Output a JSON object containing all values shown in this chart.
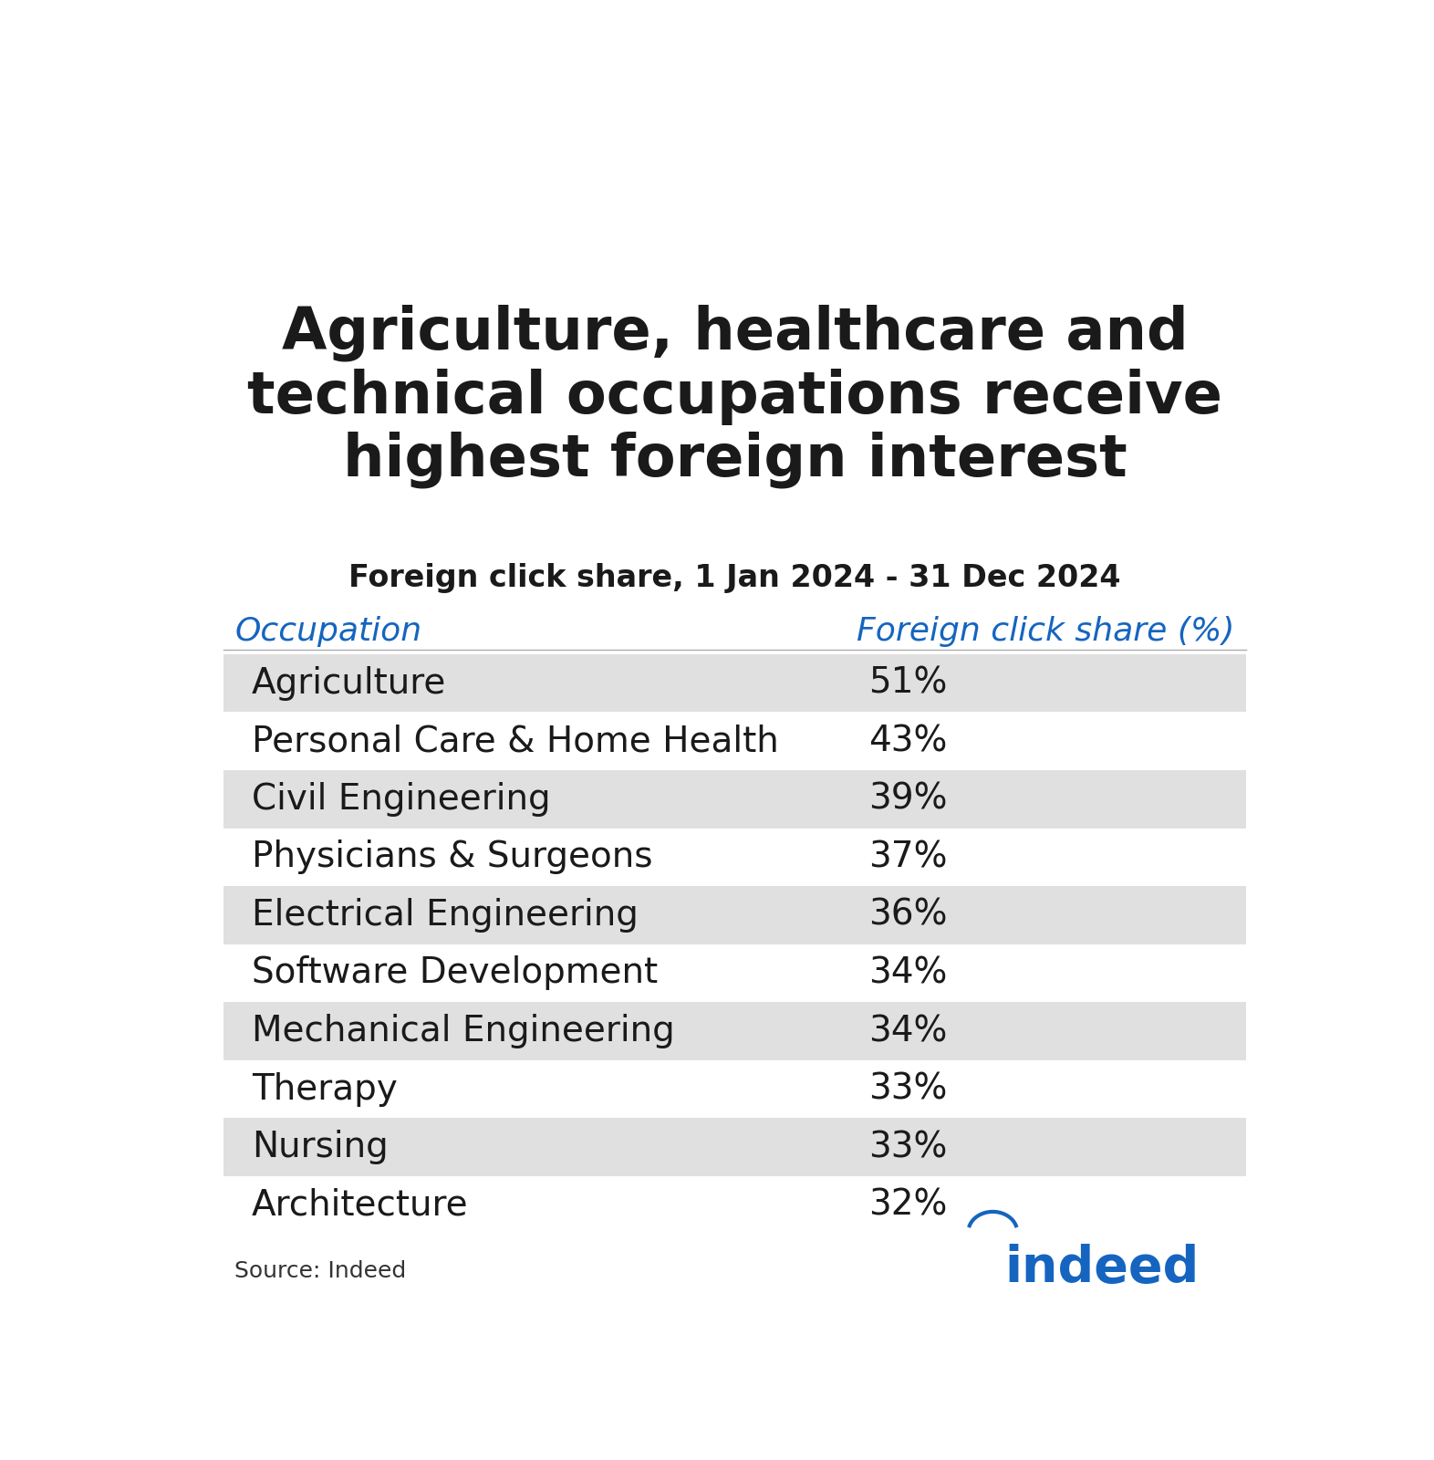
{
  "title": "Agriculture, healthcare and\ntechnical occupations receive\nhighest foreign interest",
  "subtitle": "Foreign click share, 1 Jan 2024 - 31 Dec 2024",
  "col1_header": "Occupation",
  "col2_header": "Foreign click share (%)",
  "header_color": "#1565C0",
  "rows": [
    {
      "occupation": "Agriculture",
      "value": "51%",
      "shaded": true
    },
    {
      "occupation": "Personal Care & Home Health",
      "value": "43%",
      "shaded": false
    },
    {
      "occupation": "Civil Engineering",
      "value": "39%",
      "shaded": true
    },
    {
      "occupation": "Physicians & Surgeons",
      "value": "37%",
      "shaded": false
    },
    {
      "occupation": "Electrical Engineering",
      "value": "36%",
      "shaded": true
    },
    {
      "occupation": "Software Development",
      "value": "34%",
      "shaded": false
    },
    {
      "occupation": "Mechanical Engineering",
      "value": "34%",
      "shaded": true
    },
    {
      "occupation": "Therapy",
      "value": "33%",
      "shaded": false
    },
    {
      "occupation": "Nursing",
      "value": "33%",
      "shaded": true
    },
    {
      "occupation": "Architecture",
      "value": "32%",
      "shaded": false
    }
  ],
  "shaded_color": "#E0E0E0",
  "white_color": "#FFFFFF",
  "title_color": "#1a1a1a",
  "row_text_color": "#1a1a1a",
  "source_text": "Source: Indeed",
  "source_color": "#333333",
  "background_color": "#FFFFFF",
  "title_fontsize": 46,
  "subtitle_fontsize": 24,
  "header_fontsize": 26,
  "row_fontsize": 28,
  "source_fontsize": 18,
  "fig_width": 15.72,
  "fig_height": 16.0
}
